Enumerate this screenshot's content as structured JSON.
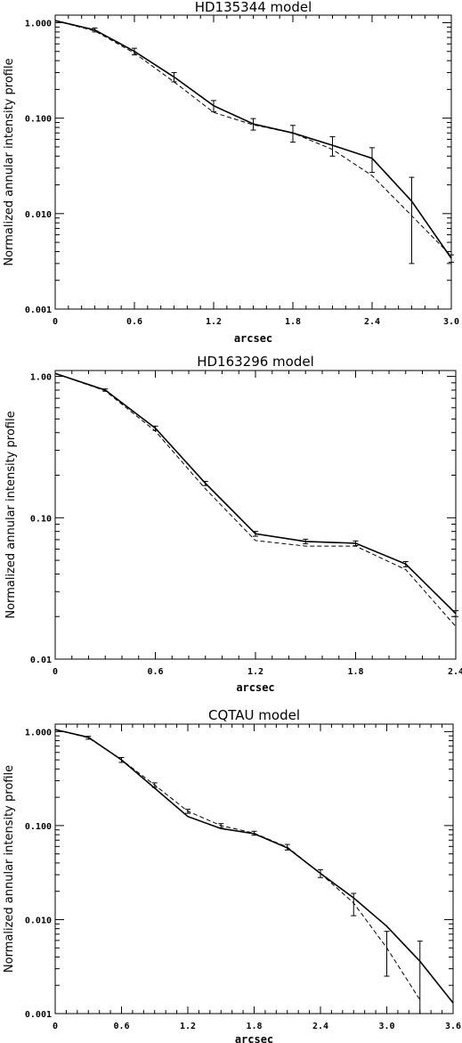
{
  "chart_data": [
    {
      "type": "line",
      "title": "HD135344 model",
      "xlabel": "arcsec",
      "ylabel": "Normalized annular intensity profile",
      "xlim": [
        0,
        3.0
      ],
      "ylim": [
        0.001,
        1.2
      ],
      "yscale": "log",
      "x_ticks": [
        "0",
        "0.6",
        "1.2",
        "1.8",
        "2.4",
        "3.0"
      ],
      "y_ticks": [
        "1.000",
        "0.100",
        "0.010",
        "0.001"
      ],
      "series": [
        {
          "style": "solid",
          "x": [
            0,
            0.3,
            0.6,
            0.9,
            1.2,
            1.5,
            1.8,
            2.1,
            2.4,
            2.7,
            3.0
          ],
          "y": [
            1.05,
            0.84,
            0.5,
            0.27,
            0.135,
            0.087,
            0.07,
            0.052,
            0.038,
            0.0135,
            0.0034
          ],
          "errors": [
            0,
            0.04,
            0.04,
            0.03,
            0.018,
            0.012,
            0.014,
            0.012,
            0.011,
            0.0105,
            0.0003
          ]
        },
        {
          "style": "dashed",
          "x": [
            0,
            0.3,
            0.6,
            0.9,
            1.2,
            1.5,
            1.8,
            2.1,
            2.4,
            2.7,
            3.0
          ],
          "y": [
            1.05,
            0.82,
            0.48,
            0.24,
            0.115,
            0.085,
            0.07,
            0.047,
            0.025,
            0.0095,
            0.0036
          ]
        }
      ]
    },
    {
      "type": "line",
      "title": "HD163296 model",
      "xlabel": "arcsec",
      "ylabel": "Normalized annular intensity profile",
      "xlim": [
        0,
        2.4
      ],
      "ylim": [
        0.01,
        1.1
      ],
      "yscale": "log",
      "x_ticks": [
        "0",
        "0.6",
        "1.2",
        "1.8",
        "2.4"
      ],
      "y_ticks": [
        "1.00",
        "0.10",
        "0.01"
      ],
      "series": [
        {
          "style": "solid",
          "x": [
            0,
            0.3,
            0.6,
            0.9,
            1.2,
            1.5,
            1.8,
            2.1,
            2.4
          ],
          "y": [
            1.05,
            0.8,
            0.43,
            0.175,
            0.077,
            0.068,
            0.066,
            0.047,
            0.021
          ],
          "errors": [
            0,
            0.015,
            0.015,
            0.006,
            0.003,
            0.0025,
            0.0025,
            0.002,
            0.001
          ]
        },
        {
          "style": "dashed",
          "x": [
            0,
            0.3,
            0.6,
            0.9,
            1.2,
            1.5,
            1.8,
            2.1,
            2.4
          ],
          "y": [
            1.05,
            0.79,
            0.41,
            0.16,
            0.069,
            0.063,
            0.063,
            0.043,
            0.017
          ]
        }
      ]
    },
    {
      "type": "line",
      "title": "CQTAU model",
      "xlabel": "arcsec",
      "ylabel": "Normalized annular intensity profile",
      "xlim": [
        0,
        3.6
      ],
      "ylim": [
        0.001,
        1.2
      ],
      "yscale": "log",
      "x_ticks": [
        "0",
        "0.6",
        "1.2",
        "1.8",
        "2.4",
        "3.0",
        "3.6"
      ],
      "y_ticks": [
        "1.000",
        "0.100",
        "0.010",
        "0.001"
      ],
      "series": [
        {
          "style": "solid",
          "x": [
            0,
            0.3,
            0.6,
            0.9,
            1.2,
            1.5,
            1.8,
            2.1,
            2.4,
            2.7,
            3.0,
            3.3,
            3.6
          ],
          "y": [
            1.05,
            0.87,
            0.5,
            0.25,
            0.125,
            0.093,
            0.082,
            0.058,
            0.031,
            0.017,
            0.0085,
            0.0036,
            0.0013
          ]
        },
        {
          "style": "dashed",
          "x": [
            0,
            0.3,
            0.6,
            0.9,
            1.2,
            1.5,
            1.8,
            2.1,
            2.4,
            2.7,
            3.0,
            3.3
          ],
          "y": [
            1.05,
            0.86,
            0.5,
            0.27,
            0.142,
            0.1,
            0.083,
            0.059,
            0.031,
            0.015,
            0.005,
            0.0014
          ],
          "errors": [
            0,
            0.03,
            0.03,
            0.015,
            0.007,
            0.005,
            0.004,
            0.004,
            0.003,
            0.004,
            0.0025,
            0.0045
          ]
        }
      ]
    }
  ]
}
